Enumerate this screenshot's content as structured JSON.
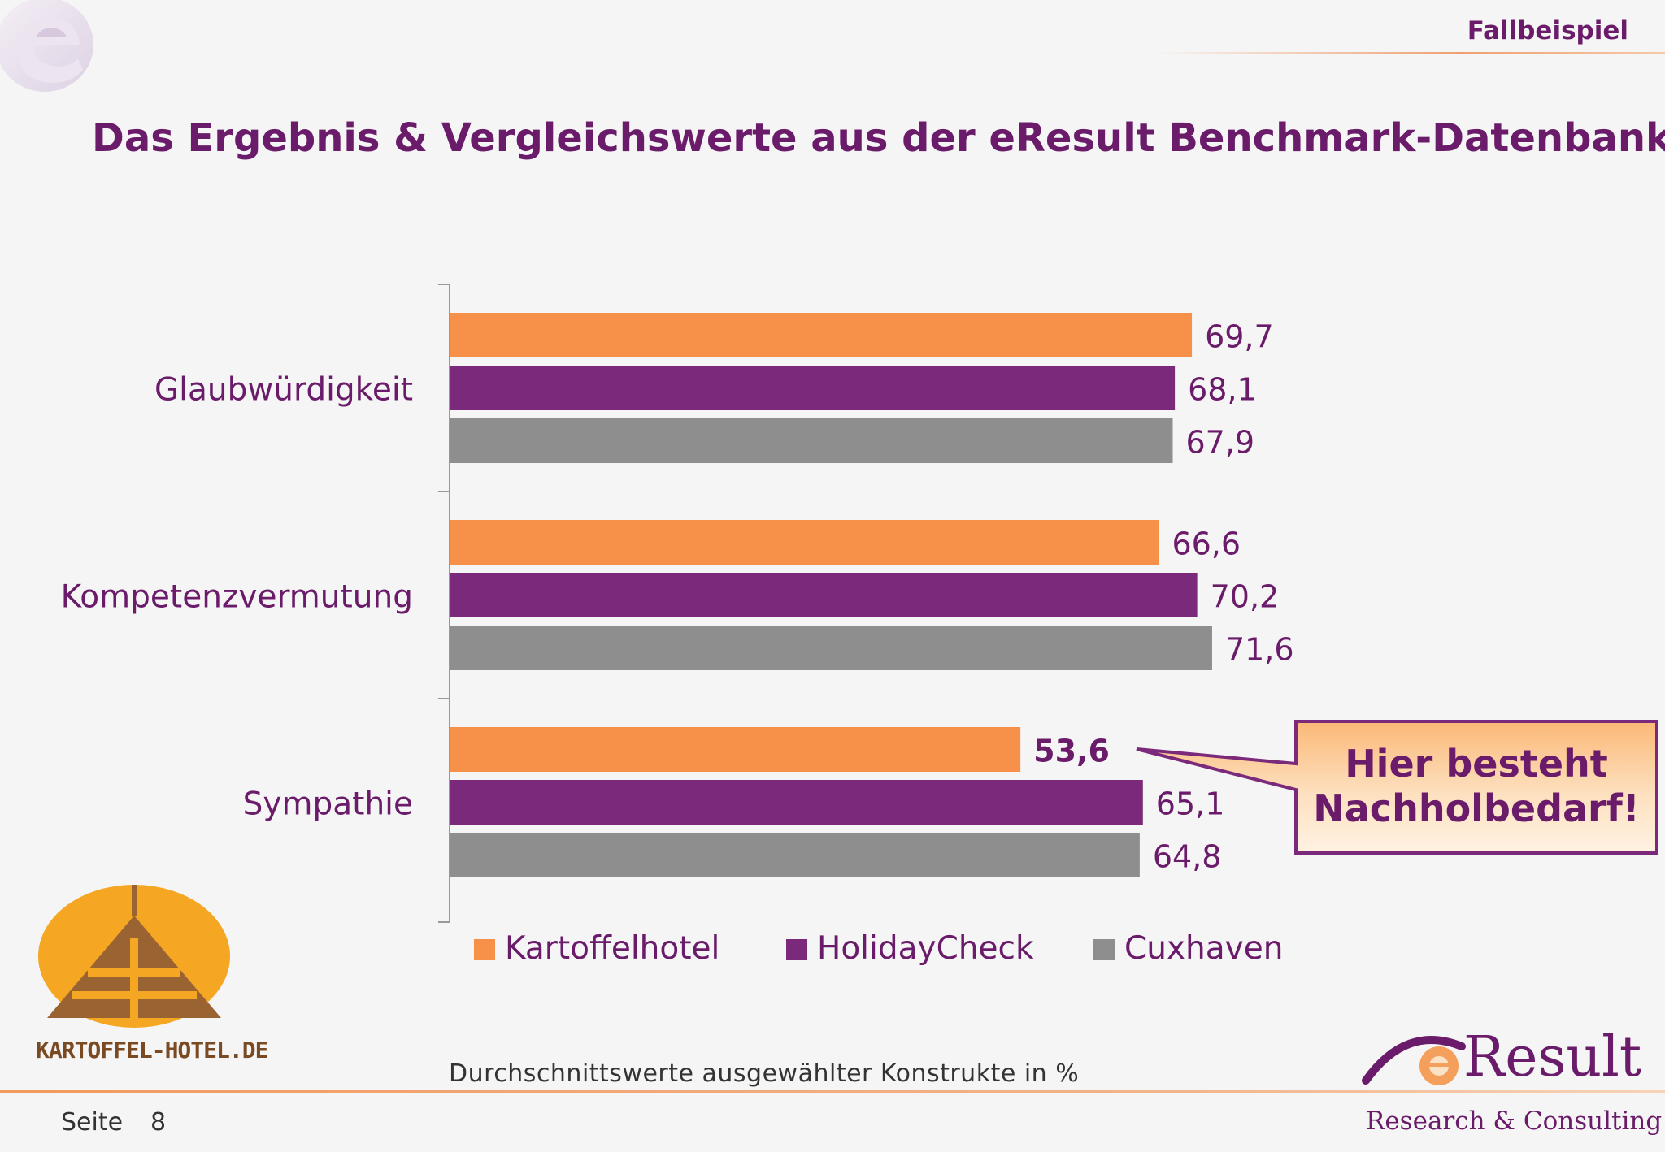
{
  "header": {
    "section_label": "Fallbeispiel",
    "title": "Das Ergebnis & Vergleichswerte aus der eResult Benchmark-Datenbank"
  },
  "chart_data": {
    "type": "bar",
    "orientation": "horizontal",
    "categories": [
      "Glaubwürdigkeit",
      "Kompetenzvermutung",
      "Sympathie"
    ],
    "series": [
      {
        "name": "Kartoffelhotel",
        "color": "#f7914a",
        "values": [
          69.7,
          66.6,
          53.6
        ],
        "labels": [
          "69,7",
          "66,6",
          "53,6"
        ]
      },
      {
        "name": "HolidayCheck",
        "color": "#7b2a7b",
        "values": [
          68.1,
          70.2,
          65.1
        ],
        "labels": [
          "68,1",
          "70,2",
          "65,1"
        ]
      },
      {
        "name": "Cuxhaven",
        "color": "#8e8e8e",
        "values": [
          67.9,
          71.6,
          64.8
        ],
        "labels": [
          "67,9",
          "71,6",
          "64,8"
        ]
      }
    ],
    "highlighted_label": "53,6",
    "xlim": [
      0,
      75
    ],
    "grid": false,
    "legend_position": "bottom"
  },
  "callout": {
    "line1": "Hier besteht",
    "line2": "Nachholbedarf!"
  },
  "caption": "Durchschnittswerte ausgewählter Konstrukte in %",
  "footer": {
    "page_label": "Seite",
    "page_number": "8",
    "hotel_logo_text": "KARTOFFEL-HOTEL.DE",
    "brand_name": "Result",
    "brand_tagline": "Research & Consulting"
  },
  "icons": {
    "corner_logo": "eresult-e-icon",
    "hotel_logo": "kartoffel-hotel-logo",
    "brand_logo": "eresult-logo"
  },
  "colors": {
    "accent_purple": "#6a1b6a",
    "accent_orange": "#f29a5e"
  }
}
